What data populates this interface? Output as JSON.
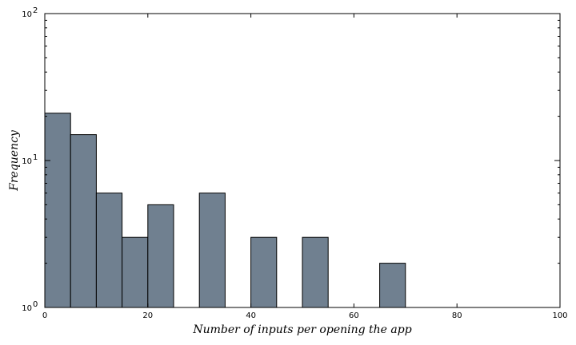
{
  "chart_data": {
    "type": "bar",
    "title": "",
    "xlabel": "Number of inputs per opening the app",
    "ylabel": "Frequency",
    "yscale": "log",
    "xlim": [
      0,
      100
    ],
    "ylim": [
      1,
      100
    ],
    "grid": false,
    "bar_color": "#708090",
    "bins": [
      {
        "x0": 0,
        "x1": 5,
        "value": 21
      },
      {
        "x0": 5,
        "x1": 10,
        "value": 15
      },
      {
        "x0": 10,
        "x1": 15,
        "value": 6
      },
      {
        "x0": 15,
        "x1": 20,
        "value": 3
      },
      {
        "x0": 20,
        "x1": 25,
        "value": 5
      },
      {
        "x0": 30,
        "x1": 35,
        "value": 6
      },
      {
        "x0": 40,
        "x1": 45,
        "value": 3
      },
      {
        "x0": 50,
        "x1": 55,
        "value": 3
      },
      {
        "x0": 65,
        "x1": 70,
        "value": 2
      }
    ],
    "x_ticks": [
      {
        "value": 0,
        "label": "0"
      },
      {
        "value": 20,
        "label": "20"
      },
      {
        "value": 40,
        "label": "40"
      },
      {
        "value": 60,
        "label": "60"
      },
      {
        "value": 80,
        "label": "80"
      },
      {
        "value": 100,
        "label": "100"
      }
    ],
    "y_ticks": [
      {
        "value": 1,
        "base": "10",
        "exp": "0"
      },
      {
        "value": 10,
        "base": "10",
        "exp": "1"
      },
      {
        "value": 100,
        "base": "10",
        "exp": "2"
      }
    ]
  }
}
